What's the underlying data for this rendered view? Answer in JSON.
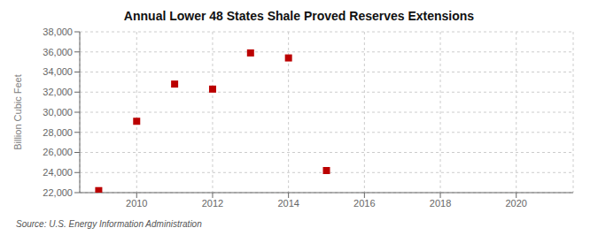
{
  "chart_data": {
    "type": "scatter",
    "title": "Annual Lower 48 States Shale Proved Reserves Extensions",
    "ylabel": "Billion Cubic Feet",
    "source": "Source: U.S. Energy Information Administration",
    "x": [
      2009,
      2010,
      2011,
      2012,
      2013,
      2014,
      2015
    ],
    "values": [
      22200,
      29100,
      32800,
      32300,
      35900,
      35400,
      24200
    ],
    "xlim": [
      2008.5,
      2021.5
    ],
    "ylim": [
      22000,
      38000
    ],
    "xticks": [
      2010,
      2012,
      2014,
      2016,
      2018,
      2020
    ],
    "yticks": [
      {
        "value": 22000,
        "label": "22,000"
      },
      {
        "value": 24000,
        "label": "24,000"
      },
      {
        "value": 26000,
        "label": "26,000"
      },
      {
        "value": 28000,
        "label": "28,000"
      },
      {
        "value": 30000,
        "label": "30,000"
      },
      {
        "value": 32000,
        "label": "32,000"
      },
      {
        "value": 34000,
        "label": "34,000"
      },
      {
        "value": 36000,
        "label": "36,000"
      },
      {
        "value": 38000,
        "label": "38,000"
      }
    ],
    "color": "#bb0000",
    "marker": "square",
    "grid": true
  }
}
